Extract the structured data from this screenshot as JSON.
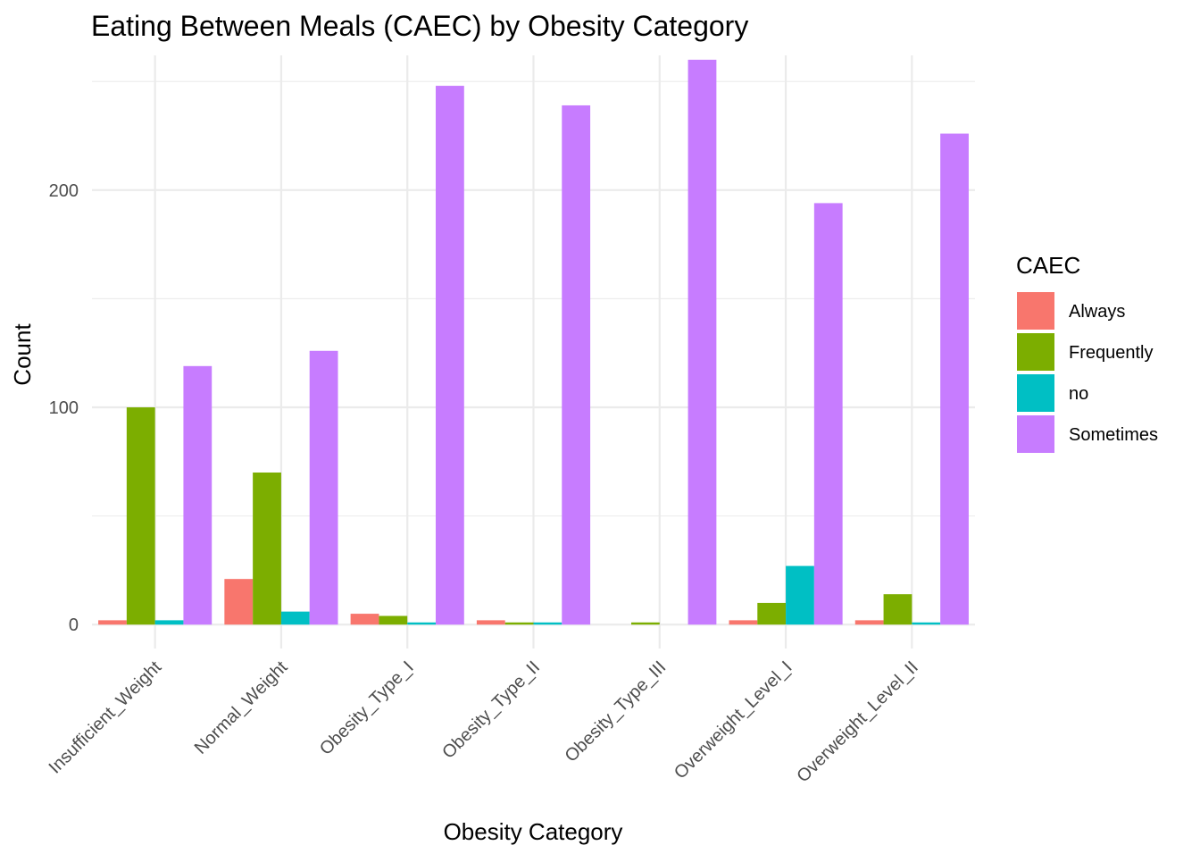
{
  "chart_data": {
    "type": "bar",
    "title": "Eating Between Meals (CAEC) by Obesity Category",
    "xlabel": "Obesity Category",
    "ylabel": "Count",
    "legend_title": "CAEC",
    "legend_position": "right",
    "grid": true,
    "ylim": [
      -11,
      262
    ],
    "yticks": [
      0,
      100,
      200
    ],
    "categories": [
      "Insufficient_Weight",
      "Normal_Weight",
      "Obesity_Type_I",
      "Obesity_Type_II",
      "Obesity_Type_III",
      "Overweight_Level_I",
      "Overweight_Level_II"
    ],
    "series": [
      {
        "name": "Always",
        "color": "#F8766D",
        "values": [
          2,
          21,
          5,
          2,
          0,
          2,
          2
        ]
      },
      {
        "name": "Frequently",
        "color": "#7CAE00",
        "values": [
          100,
          70,
          4,
          1,
          1,
          10,
          14
        ]
      },
      {
        "name": "no",
        "color": "#00BFC4",
        "values": [
          2,
          6,
          1,
          1,
          0,
          27,
          1
        ]
      },
      {
        "name": "Sometimes",
        "color": "#C77CFF",
        "values": [
          119,
          126,
          248,
          239,
          260,
          194,
          226
        ]
      }
    ]
  }
}
